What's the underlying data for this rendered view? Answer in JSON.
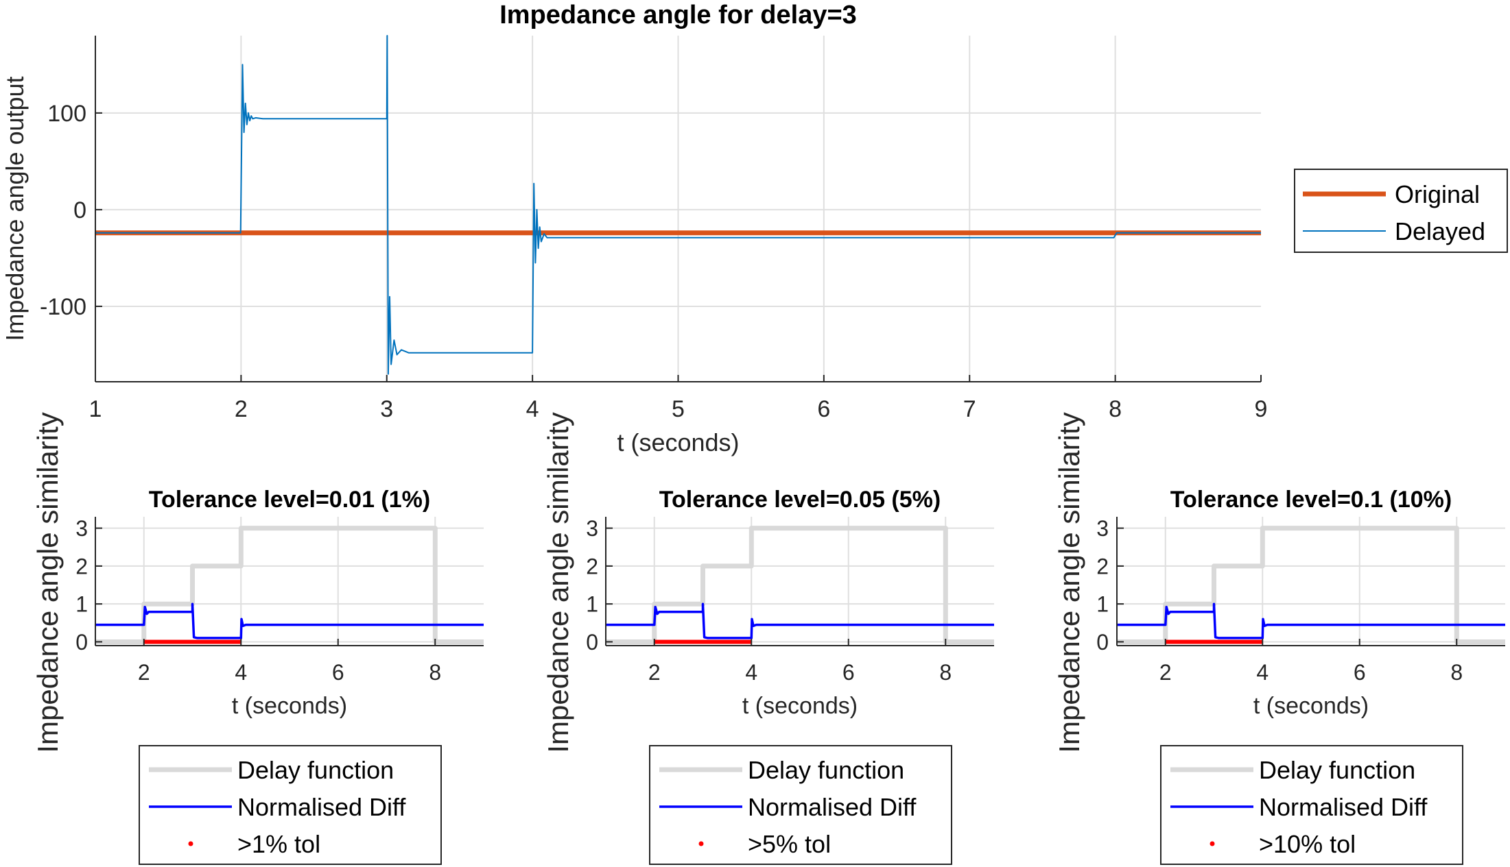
{
  "chart_data": [
    {
      "type": "line",
      "title": "Impedance angle for delay=3",
      "xlabel": "t (seconds)",
      "ylabel": "Impedance angle output",
      "xlim": [
        1,
        9
      ],
      "ylim": [
        -178,
        180
      ],
      "xticks": [
        "1",
        "2",
        "3",
        "4",
        "5",
        "6",
        "7",
        "8",
        "9"
      ],
      "yticks": [
        "-100",
        "0",
        "100"
      ],
      "grid": true,
      "legend_position": "outside-right",
      "series": [
        {
          "name": "Original",
          "color": "#D95319",
          "x": [
            1,
            9
          ],
          "y": [
            -24,
            -24
          ]
        },
        {
          "name": "Delayed",
          "color": "#0072BD",
          "x": [
            1,
            1.997,
            2.01,
            2.02,
            2.03,
            2.04,
            2.05,
            2.06,
            2.07,
            2.08,
            2.1,
            2.15,
            2.3,
            3.0,
            3.003,
            3.01,
            3.02,
            3.03,
            3.05,
            3.07,
            3.1,
            3.15,
            3.3,
            4.0,
            4.01,
            4.02,
            4.03,
            4.04,
            4.05,
            4.06,
            4.08,
            4.1,
            4.15,
            4.3,
            7.0,
            7.99,
            8.01,
            9
          ],
          "y": [
            -24,
            -24,
            150,
            80,
            110,
            88,
            100,
            92,
            97,
            94,
            95,
            94,
            94,
            94,
            180,
            -170,
            -90,
            -160,
            -135,
            -150,
            -145,
            -148,
            -148,
            -148,
            27,
            -55,
            0,
            -40,
            -18,
            -33,
            -25,
            -29,
            -29,
            -29,
            -29,
            -29,
            -24,
            -24
          ]
        }
      ]
    },
    {
      "type": "line",
      "title": "Tolerance level=0.01 (1%)",
      "xlabel": "t (seconds)",
      "ylabel": "Impedance angle similarity",
      "xlim": [
        1,
        9
      ],
      "ylim": [
        -0.1,
        3.3
      ],
      "xticks": [
        "2",
        "4",
        "6",
        "8"
      ],
      "yticks": [
        "0",
        "1",
        "2",
        "3"
      ],
      "grid": true,
      "legend_position": "below",
      "series": [
        {
          "name": "Delay function",
          "color": "#D9D9D9",
          "x": [
            1,
            2,
            2,
            3,
            3,
            4,
            4,
            8,
            8,
            9
          ],
          "y": [
            0,
            0,
            1,
            1,
            2,
            2,
            3,
            3,
            0,
            0
          ]
        },
        {
          "name": "Normalised Diff",
          "color": "#0000FF",
          "x": [
            1,
            2,
            2.02,
            2.06,
            2.1,
            3,
            3,
            3.03,
            3.1,
            4,
            4.01,
            4.04,
            4.1,
            9
          ],
          "y": [
            0.45,
            0.45,
            0.92,
            0.74,
            0.79,
            0.79,
            1.0,
            0.12,
            0.1,
            0.1,
            0.6,
            0.42,
            0.45,
            0.45
          ]
        },
        {
          "name": ">1% tol",
          "color": "#FF0000",
          "x": [
            2,
            4
          ],
          "y": [
            0,
            0
          ]
        }
      ]
    },
    {
      "type": "line",
      "title": "Tolerance level=0.05 (5%)",
      "xlabel": "t (seconds)",
      "ylabel": "Impedance angle similarity",
      "xlim": [
        1,
        9
      ],
      "ylim": [
        -0.1,
        3.3
      ],
      "xticks": [
        "2",
        "4",
        "6",
        "8"
      ],
      "yticks": [
        "0",
        "1",
        "2",
        "3"
      ],
      "grid": true,
      "legend_position": "below",
      "series": [
        {
          "name": "Delay function",
          "color": "#D9D9D9",
          "x": [
            1,
            2,
            2,
            3,
            3,
            4,
            4,
            8,
            8,
            9
          ],
          "y": [
            0,
            0,
            1,
            1,
            2,
            2,
            3,
            3,
            0,
            0
          ]
        },
        {
          "name": "Normalised Diff",
          "color": "#0000FF",
          "x": [
            1,
            2,
            2.02,
            2.06,
            2.1,
            3,
            3,
            3.03,
            3.1,
            4,
            4.01,
            4.04,
            4.1,
            9
          ],
          "y": [
            0.45,
            0.45,
            0.92,
            0.74,
            0.79,
            0.79,
            1.0,
            0.12,
            0.1,
            0.1,
            0.6,
            0.42,
            0.45,
            0.45
          ]
        },
        {
          "name": ">5% tol",
          "color": "#FF0000",
          "x": [
            2,
            4
          ],
          "y": [
            0,
            0
          ]
        }
      ]
    },
    {
      "type": "line",
      "title": "Tolerance level=0.1 (10%)",
      "xlabel": "t (seconds)",
      "ylabel": "Impedance angle similarity",
      "xlim": [
        1,
        9
      ],
      "ylim": [
        -0.1,
        3.3
      ],
      "xticks": [
        "2",
        "4",
        "6",
        "8"
      ],
      "yticks": [
        "0",
        "1",
        "2",
        "3"
      ],
      "grid": true,
      "legend_position": "below",
      "series": [
        {
          "name": "Delay function",
          "color": "#D9D9D9",
          "x": [
            1,
            2,
            2,
            3,
            3,
            4,
            4,
            8,
            8,
            9
          ],
          "y": [
            0,
            0,
            1,
            1,
            2,
            2,
            3,
            3,
            0,
            0
          ]
        },
        {
          "name": "Normalised Diff",
          "color": "#0000FF",
          "x": [
            1,
            2,
            2.02,
            2.06,
            2.1,
            3,
            3,
            3.03,
            3.1,
            4,
            4.01,
            4.04,
            4.1,
            9
          ],
          "y": [
            0.45,
            0.45,
            0.92,
            0.74,
            0.79,
            0.79,
            1.0,
            0.12,
            0.1,
            0.1,
            0.6,
            0.42,
            0.45,
            0.45
          ]
        },
        {
          "name": ">10% tol",
          "color": "#FF0000",
          "x": [
            2,
            4
          ],
          "y": [
            0,
            0
          ]
        }
      ]
    }
  ]
}
